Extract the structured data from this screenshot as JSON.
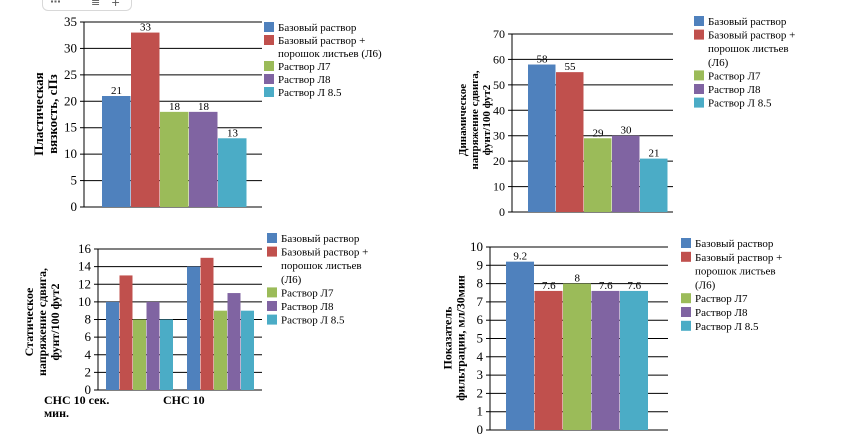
{
  "toolbar": {
    "grid_icon": "grid-icon",
    "filter_icon": "filter-icon",
    "add_icon": "plus-icon",
    "filter_glyph": "≡",
    "add_glyph": "+"
  },
  "colors": {
    "base": "#4f81bd",
    "leaves": "#c0504d",
    "l7": "#9bbb59",
    "l8": "#8064a2",
    "l85": "#4bacc6"
  },
  "chart_data": [
    {
      "id": "plastic-viscosity",
      "type": "bar",
      "ylabel": [
        "Пластическая",
        "вязкость, сПз"
      ],
      "ylim": [
        0,
        35
      ],
      "ystep": 5,
      "categories": [
        ""
      ],
      "series": [
        {
          "name": "Базовый раствор",
          "values": [
            21
          ],
          "labels": [
            "21"
          ]
        },
        {
          "name": [
            "Базовый раствор +",
            "порошок листьев (Л6)"
          ],
          "values": [
            33
          ],
          "labels": [
            "33"
          ]
        },
        {
          "name": "Раствор Л7",
          "values": [
            18
          ],
          "labels": [
            "18"
          ]
        },
        {
          "name": "Раствор Л8",
          "values": [
            18
          ],
          "labels": [
            "18"
          ]
        },
        {
          "name": "Раствор Л 8.5",
          "values": [
            13
          ],
          "labels": [
            "13"
          ]
        }
      ],
      "legend": "right",
      "grid": true
    },
    {
      "id": "yield-point",
      "type": "bar",
      "ylabel": [
        "Динамическое",
        "напряжение сдвига,",
        "фунт/100 фут2"
      ],
      "ylim": [
        0,
        70
      ],
      "ystep": 10,
      "categories": [
        ""
      ],
      "series": [
        {
          "name": "Базовый раствор",
          "values": [
            58
          ],
          "labels": [
            "58"
          ]
        },
        {
          "name": [
            "Базовый раствор +",
            "порошок листьев",
            "(Л6)"
          ],
          "values": [
            55
          ],
          "labels": [
            "55"
          ]
        },
        {
          "name": "Раствор Л7",
          "values": [
            29
          ],
          "labels": [
            "29"
          ]
        },
        {
          "name": "Раствор Л8",
          "values": [
            30
          ],
          "labels": [
            "30"
          ]
        },
        {
          "name": "Раствор Л 8.5",
          "values": [
            21
          ],
          "labels": [
            "21"
          ]
        }
      ],
      "legend": "right",
      "grid": true
    },
    {
      "id": "gel-strength",
      "type": "bar",
      "ylabel": [
        "Статическое",
        "напряжение сдвига,",
        "фунт/100 фут2"
      ],
      "ylim": [
        0,
        16
      ],
      "ystep": 2,
      "categories": [
        [
          "СНС 10 сек.",
          "мин."
        ],
        [
          "СНС 10"
        ]
      ],
      "series": [
        {
          "name": "Базовый раствор",
          "values": [
            10,
            14
          ]
        },
        {
          "name": [
            "Базовый раствор +",
            "порошок листьев",
            "(Л6)"
          ],
          "values": [
            13,
            15
          ]
        },
        {
          "name": "Раствор Л7",
          "values": [
            8,
            9
          ]
        },
        {
          "name": "Раствор Л8",
          "values": [
            10,
            11
          ]
        },
        {
          "name": "Раствор Л 8.5",
          "values": [
            8,
            9
          ]
        }
      ],
      "legend": "right",
      "grid": true
    },
    {
      "id": "filtration",
      "type": "bar",
      "ylabel": [
        "Показатель",
        "фильтрации, мл/30мин"
      ],
      "ylim": [
        0,
        10
      ],
      "ystep": 1,
      "categories": [
        ""
      ],
      "series": [
        {
          "name": "Базовый раствор",
          "values": [
            9.2
          ],
          "labels": [
            "9.2"
          ]
        },
        {
          "name": [
            "Базовый раствор +",
            "порошок листьев",
            "(Л6)"
          ],
          "values": [
            7.6
          ],
          "labels": [
            "7.6"
          ]
        },
        {
          "name": "Раствор Л7",
          "values": [
            8
          ],
          "labels": [
            "8"
          ]
        },
        {
          "name": "Раствор Л8",
          "values": [
            7.6
          ],
          "labels": [
            "7.6"
          ]
        },
        {
          "name": "Раствор Л 8.5",
          "values": [
            7.6
          ],
          "labels": [
            "7.6"
          ]
        }
      ],
      "legend": "right",
      "grid": true
    }
  ]
}
